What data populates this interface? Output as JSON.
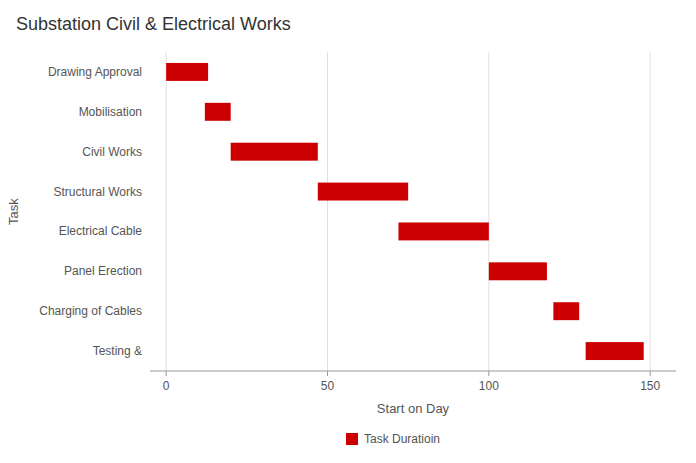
{
  "chart_data": {
    "type": "bar",
    "orientation": "horizontal",
    "title": "Substation Civil & Electrical Works",
    "categories": [
      "Drawing Approval",
      "Mobilisation",
      "Civil Works",
      "Structural Works",
      "Electrical Cable",
      "Panel Erection",
      "Charging of Cables",
      "Testing &"
    ],
    "series": [
      {
        "name": "Task Duratioin",
        "color": "#cc0000",
        "values": [
          13,
          8,
          27,
          28,
          28,
          18,
          8,
          18
        ],
        "starts": [
          0,
          12,
          20,
          47,
          72,
          100,
          120,
          130
        ]
      }
    ],
    "x_label": "Start on Day",
    "y_label": "Task",
    "xlim": [
      -5,
      158
    ],
    "xticks": [
      0,
      50,
      100,
      150
    ],
    "grid": true,
    "legend": "bottom"
  }
}
